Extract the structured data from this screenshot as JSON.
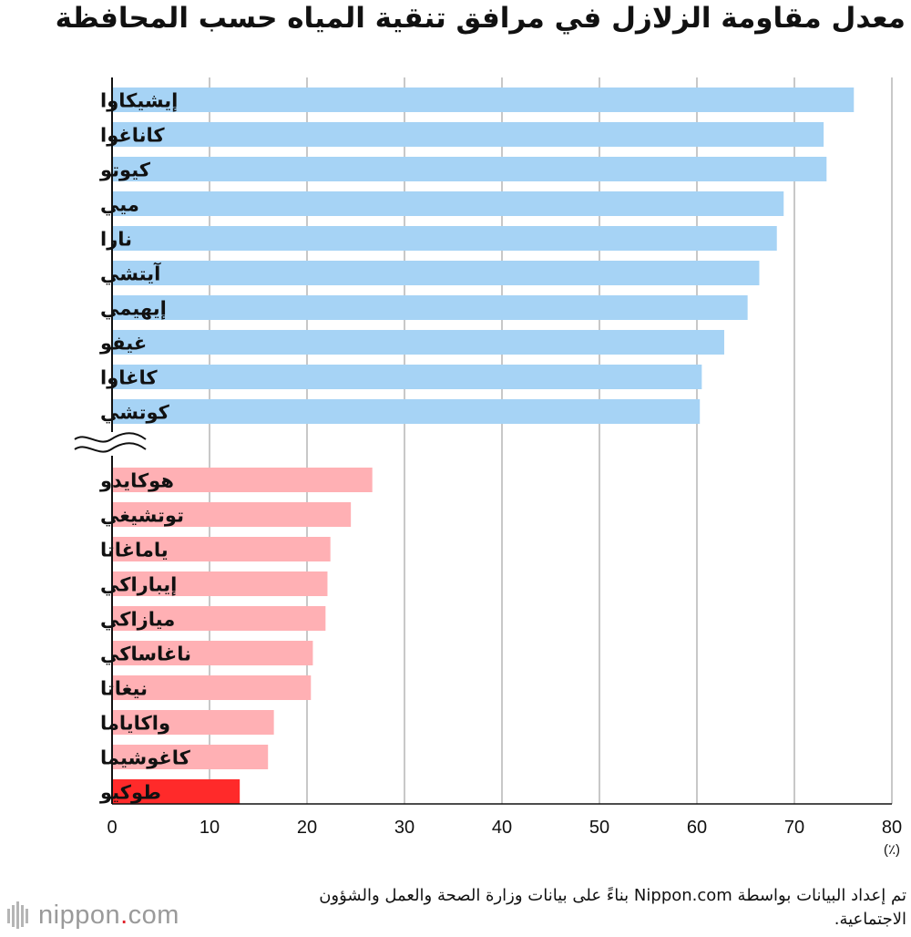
{
  "chart_data": {
    "type": "bar",
    "orientation": "horizontal",
    "title": "معدل مقاومة الزلازل في مرافق تنقية المياه حسب المحافظة",
    "unit": "(٪)",
    "xlim": [
      0,
      80
    ],
    "xticks": [
      "0",
      "10",
      "20",
      "30",
      "40",
      "50",
      "60",
      "70",
      "80"
    ],
    "axis_break": "between top 10 and bottom 10",
    "grid": true,
    "colors": {
      "top": "#a6d3f5",
      "bottom": "#ffb0b4",
      "highlight": "#ff2a2a"
    },
    "groups": [
      {
        "name": "top",
        "categories": [
          "إيشيكاوا",
          "كاناغوا",
          "كيوتو",
          "ميي",
          "نارا",
          "آيتشي",
          "إيهيمي",
          "غيفو",
          "كاغاوا",
          "كوتشي"
        ],
        "values": [
          76.1,
          73.0,
          73.3,
          68.9,
          68.2,
          66.4,
          65.2,
          62.8,
          60.5,
          60.3
        ]
      },
      {
        "name": "bottom",
        "categories": [
          "هوكايدو",
          "توتشيغي",
          "ياماغاتا",
          "إيباراكي",
          "ميازاكي",
          "ناغاساكي",
          "نيغاتا",
          "واكاياما",
          "كاغوشيما",
          "طوكيو"
        ],
        "values": [
          26.7,
          24.5,
          22.4,
          22.1,
          21.9,
          20.6,
          20.4,
          16.6,
          16.0,
          13.1
        ]
      }
    ],
    "highlight_category": "طوكيو"
  },
  "source_note": "تم إعداد البيانات بواسطة Nippon.com بناءً على بيانات وزارة الصحة والعمل والشؤون الاجتماعية.",
  "logo": {
    "name": "nippon",
    "dot": ".",
    "suffix": "com"
  }
}
